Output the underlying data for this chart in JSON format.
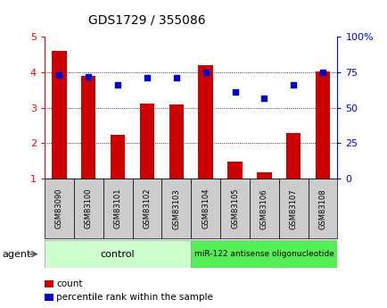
{
  "title": "GDS1729 / 355086",
  "categories": [
    "GSM83090",
    "GSM83100",
    "GSM83101",
    "GSM83102",
    "GSM83103",
    "GSM83104",
    "GSM83105",
    "GSM83106",
    "GSM83107",
    "GSM83108"
  ],
  "count_values": [
    4.6,
    3.9,
    2.25,
    3.12,
    3.1,
    4.2,
    1.48,
    1.18,
    2.28,
    4.02
  ],
  "percentile_values": [
    73,
    72,
    66,
    71,
    71,
    75,
    61,
    57,
    66,
    75
  ],
  "bar_color": "#CC0000",
  "dot_color": "#0000CC",
  "left_ylim": [
    1,
    5
  ],
  "right_ylim": [
    0,
    100
  ],
  "left_yticks": [
    1,
    2,
    3,
    4,
    5
  ],
  "right_yticks": [
    0,
    25,
    50,
    75,
    100
  ],
  "right_yticklabels": [
    "0",
    "25",
    "50",
    "75",
    "100%"
  ],
  "grid_lines": [
    2,
    3,
    4
  ],
  "control_color": "#CCFFCC",
  "treatment_color": "#55EE55",
  "control_label": "control",
  "treatment_label": "miR-122 antisense oligonucleotide",
  "agent_label": "agent",
  "control_count": 5,
  "treatment_count": 5,
  "legend_count_label": "count",
  "legend_percentile_label": "percentile rank within the sample",
  "background_color": "#ffffff",
  "plot_bg_color": "#ffffff",
  "box_color": "#CCCCCC"
}
